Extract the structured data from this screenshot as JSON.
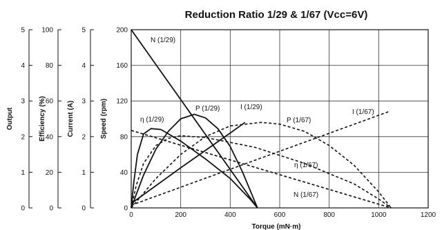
{
  "chart_data": {
    "type": "line",
    "title": "Reduction Ratio 1/29 & 1/67 (Vcc=6V)",
    "xlabel": "Torque (mN·m)",
    "xlim": [
      0,
      1200
    ],
    "x_ticks": [
      "0",
      "200",
      "400",
      "600",
      "800",
      "1000",
      "1200"
    ],
    "grid": true,
    "y_axes": [
      {
        "label": "Speed (rpm)",
        "ylim": [
          0,
          200
        ],
        "ticks": [
          "0",
          "40",
          "80",
          "120",
          "160",
          "200"
        ]
      },
      {
        "label": "Current (A)",
        "ylim": [
          0,
          5
        ],
        "ticks": [
          "0",
          "1",
          "2",
          "3",
          "4",
          "5"
        ]
      },
      {
        "label": "Efficiency (%)",
        "ylim": [
          0,
          100
        ],
        "ticks": [
          "0",
          "20",
          "40",
          "60",
          "80",
          "100"
        ]
      },
      {
        "label": "Output",
        "ylim": [
          0,
          5
        ],
        "ticks": [
          "0",
          "1",
          "2",
          "3",
          "4",
          "5"
        ]
      }
    ],
    "series": [
      {
        "name": "N (1/29)",
        "axis": "Speed (rpm)",
        "style": "solid",
        "x": [
          0,
          510
        ],
        "y": [
          200,
          0
        ]
      },
      {
        "name": "P (1/29)",
        "axis": "Speed (rpm)",
        "style": "solid",
        "x": [
          0,
          50,
          100,
          150,
          200,
          255,
          300,
          350,
          400,
          450,
          510
        ],
        "y": [
          0,
          37,
          66,
          86,
          100,
          105,
          101,
          89,
          69,
          40,
          0
        ]
      },
      {
        "name": "η (1/29)",
        "axis": "Speed (rpm)",
        "style": "solid",
        "x": [
          0,
          10,
          25,
          50,
          80,
          120,
          200,
          300,
          400,
          480,
          510
        ],
        "y": [
          0,
          28,
          60,
          83,
          89,
          88,
          75,
          55,
          33,
          10,
          0
        ]
      },
      {
        "name": "I (1/29)",
        "axis": "Speed (rpm)",
        "style": "solid",
        "x": [
          0,
          200,
          400,
          460
        ],
        "y": [
          5,
          45,
          84,
          96
        ]
      },
      {
        "name": "N (1/67)",
        "axis": "Speed (rpm)",
        "style": "dashed",
        "x": [
          0,
          1050
        ],
        "y": [
          87,
          0
        ]
      },
      {
        "name": "P (1/67)",
        "axis": "Speed (rpm)",
        "style": "dashed",
        "x": [
          0,
          100,
          200,
          300,
          400,
          525,
          600,
          700,
          800,
          900,
          1000,
          1050
        ],
        "y": [
          0,
          33,
          60,
          80,
          92,
          96,
          94,
          86,
          70,
          48,
          18,
          0
        ]
      },
      {
        "name": "η (1/67)",
        "axis": "Speed (rpm)",
        "style": "dashed",
        "x": [
          0,
          20,
          50,
          100,
          150,
          200,
          300,
          500,
          700,
          900,
          1000,
          1050
        ],
        "y": [
          0,
          25,
          50,
          70,
          78,
          81,
          79,
          68,
          50,
          27,
          10,
          0
        ]
      },
      {
        "name": "I (1/67)",
        "axis": "Speed (rpm)",
        "style": "dashed",
        "x": [
          0,
          1040
        ],
        "y": [
          3,
          108
        ]
      }
    ]
  }
}
